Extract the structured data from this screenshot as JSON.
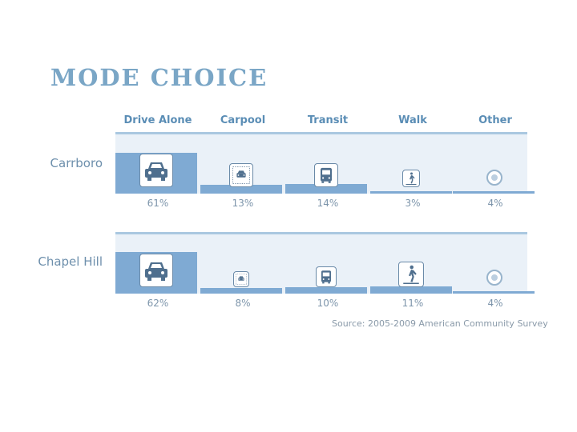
{
  "title": "MODE CHOICE",
  "columns": [
    "Drive Alone",
    "Carpool",
    "Transit",
    "Walk",
    "Other"
  ],
  "chart_data": {
    "type": "bar",
    "categories": [
      "Drive Alone",
      "Carpool",
      "Transit",
      "Walk",
      "Other"
    ],
    "series": [
      {
        "name": "Carrboro",
        "values": [
          61,
          13,
          14,
          3,
          4
        ],
        "labels": [
          "61%",
          "13%",
          "14%",
          "3%",
          "4%"
        ]
      },
      {
        "name": "Chapel Hill",
        "values": [
          62,
          8,
          10,
          11,
          4
        ],
        "labels": [
          "62%",
          "8%",
          "10%",
          "11%",
          "4%"
        ]
      }
    ],
    "ylim": [
      0,
      100
    ]
  },
  "icons": [
    "car-icon",
    "carpool-icon",
    "bus-icon",
    "pedestrian-icon",
    "other-circle-icon"
  ],
  "source": "Source: 2005-2009 American Community Survey",
  "colors": {
    "bar": "#7faad3",
    "panel": "#eaf1f8",
    "title": "#7aa6c6",
    "header": "#5a8db5"
  }
}
